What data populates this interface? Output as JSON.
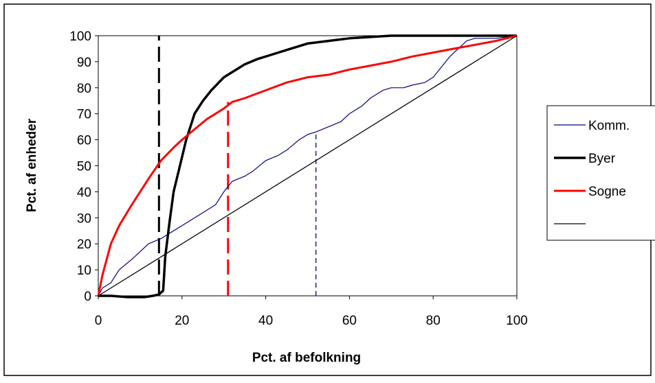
{
  "chart_data": {
    "type": "line",
    "title": "",
    "xlabel": "Pct. af befolkning",
    "ylabel": "Pct. af enheder",
    "xlim": [
      0,
      100
    ],
    "ylim": [
      0,
      100
    ],
    "x_ticks": [
      "0",
      "20",
      "40",
      "60",
      "80",
      "100"
    ],
    "y_ticks": [
      "0",
      "10",
      "20",
      "30",
      "40",
      "50",
      "60",
      "70",
      "80",
      "90",
      "100"
    ],
    "grid": false,
    "legend_position": "right",
    "series": [
      {
        "name": "Komm.",
        "color": "#000080",
        "points": [
          [
            0,
            0
          ],
          [
            1,
            3
          ],
          [
            3,
            5
          ],
          [
            5,
            10
          ],
          [
            8,
            14
          ],
          [
            10,
            17
          ],
          [
            12,
            20
          ],
          [
            15,
            22
          ],
          [
            17,
            24
          ],
          [
            20,
            27
          ],
          [
            22,
            29
          ],
          [
            25,
            32
          ],
          [
            28,
            35
          ],
          [
            30,
            40
          ],
          [
            32,
            44
          ],
          [
            35,
            46
          ],
          [
            37,
            48
          ],
          [
            40,
            52
          ],
          [
            43,
            54
          ],
          [
            45,
            56
          ],
          [
            48,
            60
          ],
          [
            50,
            62
          ],
          [
            52,
            63
          ],
          [
            55,
            65
          ],
          [
            58,
            67
          ],
          [
            60,
            70
          ],
          [
            63,
            73
          ],
          [
            65,
            76
          ],
          [
            68,
            79
          ],
          [
            70,
            80
          ],
          [
            73,
            80
          ],
          [
            75,
            81
          ],
          [
            78,
            82
          ],
          [
            80,
            84
          ],
          [
            82,
            88
          ],
          [
            84,
            92
          ],
          [
            86,
            95
          ],
          [
            88,
            98
          ],
          [
            90,
            99
          ],
          [
            95,
            99
          ],
          [
            100,
            100
          ]
        ]
      },
      {
        "name": "Byer",
        "color": "#000000",
        "points": [
          [
            0,
            0
          ],
          [
            3,
            0
          ],
          [
            7,
            -0.5
          ],
          [
            11,
            -0.5
          ],
          [
            13,
            0
          ],
          [
            14.5,
            0.5
          ],
          [
            15.5,
            2
          ],
          [
            16,
            15
          ],
          [
            17,
            28
          ],
          [
            18,
            40
          ],
          [
            19.5,
            50
          ],
          [
            21,
            60
          ],
          [
            22,
            65
          ],
          [
            23,
            70
          ],
          [
            25,
            75
          ],
          [
            27,
            79
          ],
          [
            30,
            84
          ],
          [
            33,
            87
          ],
          [
            35,
            89
          ],
          [
            38,
            91
          ],
          [
            42,
            93
          ],
          [
            46,
            95
          ],
          [
            50,
            97
          ],
          [
            55,
            98
          ],
          [
            60,
            99
          ],
          [
            65,
            99.5
          ],
          [
            70,
            100
          ],
          [
            80,
            100
          ],
          [
            90,
            100
          ],
          [
            100,
            100
          ]
        ]
      },
      {
        "name": "Sogne",
        "color": "#ff0000",
        "points": [
          [
            0,
            0
          ],
          [
            1,
            8
          ],
          [
            2,
            14
          ],
          [
            3,
            20
          ],
          [
            5,
            27
          ],
          [
            8,
            35
          ],
          [
            10,
            40
          ],
          [
            12,
            45
          ],
          [
            15,
            52
          ],
          [
            18,
            57
          ],
          [
            20,
            60
          ],
          [
            23,
            64
          ],
          [
            26,
            68
          ],
          [
            30,
            72
          ],
          [
            32,
            74.5
          ],
          [
            35,
            76
          ],
          [
            40,
            79
          ],
          [
            45,
            82
          ],
          [
            50,
            84
          ],
          [
            55,
            85
          ],
          [
            60,
            87
          ],
          [
            65,
            88.5
          ],
          [
            70,
            90
          ],
          [
            75,
            92
          ],
          [
            80,
            93.5
          ],
          [
            85,
            95
          ],
          [
            90,
            96.5
          ],
          [
            95,
            98
          ],
          [
            100,
            100
          ]
        ]
      },
      {
        "name": "",
        "color": "#000000",
        "points": [
          [
            0,
            0
          ],
          [
            100,
            100
          ]
        ]
      }
    ],
    "reference_lines": [
      {
        "x": 14.5,
        "y_from": 0,
        "y_to": 100,
        "color": "#000000",
        "style": "dashed"
      },
      {
        "x": 31,
        "y_from": 0,
        "y_to": 74.5,
        "color": "#ff0000",
        "style": "dashed"
      },
      {
        "x": 52,
        "y_from": 0,
        "y_to": 63,
        "color": "#000080",
        "style": "dashed"
      }
    ]
  }
}
